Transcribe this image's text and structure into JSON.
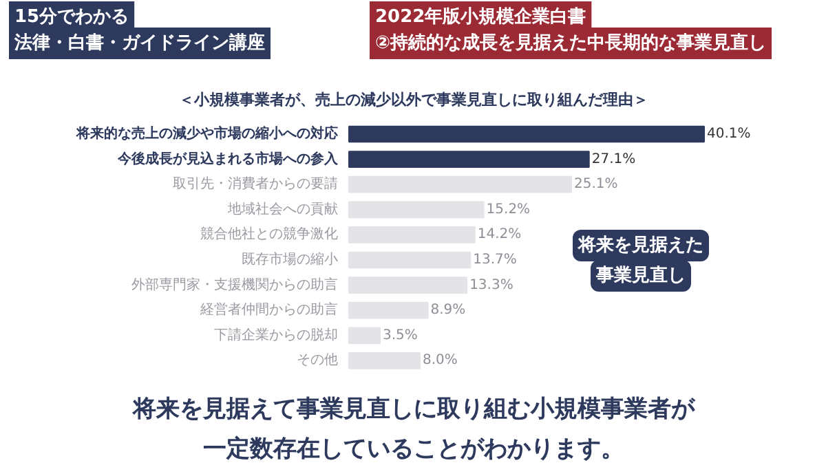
{
  "chart_data": {
    "type": "bar",
    "orientation": "horizontal",
    "title": "＜小規模事業者が、売上の減少以外で事業見直しに取り組んだ理由＞",
    "categories": [
      "将来的な売上の減少や市場の縮小への対応",
      "今後成長が見込まれる市場への参入",
      "取引先・消費者からの要請",
      "地域社会への貢献",
      "競合他社との競争激化",
      "既存市場の縮小",
      "外部専門家・支援機関からの助言",
      "経営者仲間からの助言",
      "下請企業からの脱却",
      "その他"
    ],
    "values": [
      40.1,
      27.1,
      25.1,
      15.2,
      14.2,
      13.7,
      13.3,
      8.9,
      3.5,
      8.0
    ],
    "value_labels": [
      "40.1%",
      "27.1%",
      "25.1%",
      "15.2%",
      "14.2%",
      "13.7%",
      "13.3%",
      "8.9%",
      "3.5%",
      "8.0%"
    ],
    "colors": [
      "#2d3a5e",
      "#2d3a5e",
      "#e4e4e8",
      "#e4e4e8",
      "#e4e4e8",
      "#e4e4e8",
      "#e4e4e8",
      "#e4e4e8",
      "#e4e4e8",
      "#e4e4e8"
    ],
    "tick_labels": false,
    "annotations": [
      "15分でわかる",
      "法律・白書・ガイドライン講座",
      "2022年版小規模企業白書",
      "②持続的な成長を見据えた中長期的な事業見直し",
      "将来を見据えた",
      "事業見直し",
      "将来を見据えて事業見直しに取り組む小規模事業者が",
      "一定数存在していることがわかります。"
    ]
  }
}
